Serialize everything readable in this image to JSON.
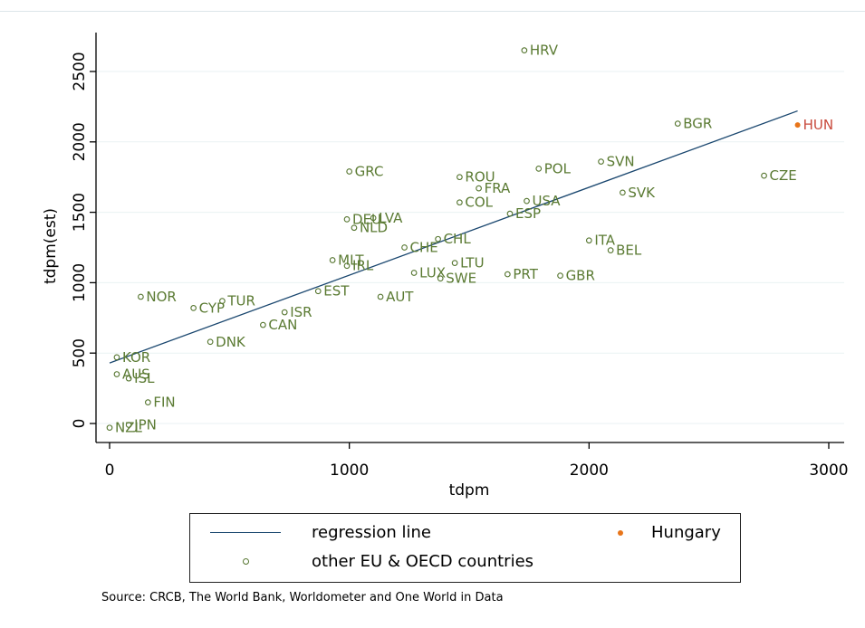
{
  "chart_data": {
    "type": "scatter",
    "xlabel": "tdpm",
    "ylabel": "tdpm(est)",
    "xlim": [
      -30,
      3060
    ],
    "ylim": [
      -130,
      2790
    ],
    "xticks": [
      0,
      1000,
      2000,
      3000
    ],
    "yticks": [
      0,
      500,
      1000,
      1500,
      2000,
      2500
    ],
    "grid": "horizontal",
    "colors": {
      "regression": "#1a476f",
      "hungary": "#e8751a",
      "others": "#55752f"
    },
    "regression_line": {
      "name": "regression line",
      "x": [
        0,
        2870
      ],
      "y": [
        430,
        2220
      ]
    },
    "series": [
      {
        "name": "Hungary",
        "marker": "filled",
        "points": [
          {
            "label": "HUN",
            "x": 2870,
            "y": 2120
          }
        ]
      },
      {
        "name": "other EU & OECD countries",
        "marker": "hollow",
        "points": [
          {
            "label": "HRV",
            "x": 1730,
            "y": 2650
          },
          {
            "label": "BGR",
            "x": 2370,
            "y": 2130
          },
          {
            "label": "SVN",
            "x": 2050,
            "y": 1860
          },
          {
            "label": "POL",
            "x": 1790,
            "y": 1810
          },
          {
            "label": "CZE",
            "x": 2730,
            "y": 1760
          },
          {
            "label": "SVK",
            "x": 2140,
            "y": 1640
          },
          {
            "label": "GRC",
            "x": 1000,
            "y": 1790
          },
          {
            "label": "ROU",
            "x": 1460,
            "y": 1750
          },
          {
            "label": "FRA",
            "x": 1540,
            "y": 1670
          },
          {
            "label": "USA",
            "x": 1740,
            "y": 1580
          },
          {
            "label": "COL",
            "x": 1460,
            "y": 1570
          },
          {
            "label": "ESP",
            "x": 1670,
            "y": 1490
          },
          {
            "label": "LVA",
            "x": 1100,
            "y": 1460
          },
          {
            "label": "DEU",
            "x": 990,
            "y": 1450
          },
          {
            "label": "NLD",
            "x": 1020,
            "y": 1390
          },
          {
            "label": "CHL",
            "x": 1370,
            "y": 1310
          },
          {
            "label": "CHE",
            "x": 1230,
            "y": 1250
          },
          {
            "label": "ITA",
            "x": 2000,
            "y": 1300
          },
          {
            "label": "BEL",
            "x": 2090,
            "y": 1230
          },
          {
            "label": "MLT",
            "x": 930,
            "y": 1160
          },
          {
            "label": "IRL",
            "x": 990,
            "y": 1120
          },
          {
            "label": "LTU",
            "x": 1440,
            "y": 1140
          },
          {
            "label": "LUX",
            "x": 1270,
            "y": 1070
          },
          {
            "label": "SWE",
            "x": 1380,
            "y": 1030
          },
          {
            "label": "PRT",
            "x": 1660,
            "y": 1060
          },
          {
            "label": "GBR",
            "x": 1880,
            "y": 1050
          },
          {
            "label": "EST",
            "x": 870,
            "y": 940
          },
          {
            "label": "AUT",
            "x": 1130,
            "y": 900
          },
          {
            "label": "NOR",
            "x": 130,
            "y": 900
          },
          {
            "label": "TUR",
            "x": 470,
            "y": 870
          },
          {
            "label": "CYP",
            "x": 350,
            "y": 820
          },
          {
            "label": "ISR",
            "x": 730,
            "y": 790
          },
          {
            "label": "CAN",
            "x": 640,
            "y": 700
          },
          {
            "label": "DNK",
            "x": 420,
            "y": 580
          },
          {
            "label": "KOR",
            "x": 30,
            "y": 470
          },
          {
            "label": "AUS",
            "x": 30,
            "y": 350
          },
          {
            "label": "ISL",
            "x": 80,
            "y": 320
          },
          {
            "label": "FIN",
            "x": 160,
            "y": 150
          },
          {
            "label": "NZL",
            "x": 0,
            "y": -30
          },
          {
            "label": "JPN",
            "x": 80,
            "y": -10
          }
        ]
      }
    ]
  },
  "legend": {
    "regression_label": "regression line",
    "hungary_label": "Hungary",
    "others_label": "other EU & OECD countries"
  },
  "source_note": "Source: CRCB, The World Bank, Worldometer and One World in Data"
}
